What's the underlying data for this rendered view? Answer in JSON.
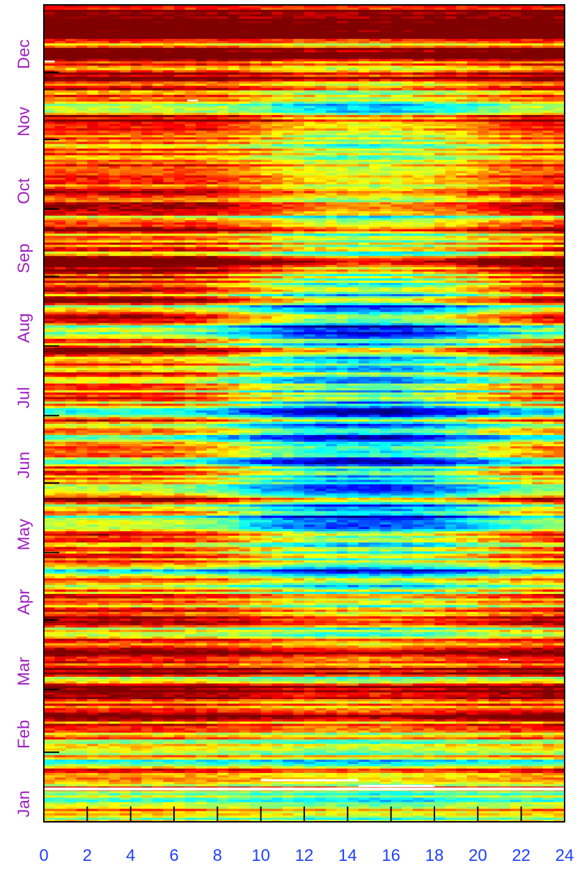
{
  "chart_data": {
    "type": "heatmap",
    "title": "",
    "xlabel": "",
    "ylabel": "",
    "x_range": [
      0,
      24
    ],
    "x_ticks": [
      "0",
      "2",
      "4",
      "6",
      "8",
      "10",
      "12",
      "14",
      "16",
      "18",
      "20",
      "22",
      "24"
    ],
    "y_months": [
      "Jan",
      "Feb",
      "Mar",
      "Apr",
      "May",
      "Jun",
      "Jul",
      "Aug",
      "Sep",
      "Oct",
      "Nov",
      "Dec"
    ],
    "y_range_days": [
      1,
      365
    ],
    "colormap": "jet",
    "colors": {
      "x_tick_labels": "#1f3fff",
      "y_tick_labels": "#a020c0",
      "frame": "#000000",
      "missing": "#ffffff"
    },
    "grid": false,
    "legend": "none",
    "value_scale": "0 (low, blue) to 1 (high, dark red)",
    "monthly_hourly_profile": {
      "hours": [
        0,
        2,
        4,
        6,
        8,
        10,
        12,
        14,
        16,
        18,
        20,
        22,
        24
      ],
      "Jan": [
        0.62,
        0.62,
        0.63,
        0.62,
        0.6,
        0.58,
        0.55,
        0.52,
        0.52,
        0.55,
        0.58,
        0.6,
        0.62
      ],
      "Feb": [
        0.8,
        0.8,
        0.8,
        0.8,
        0.78,
        0.74,
        0.7,
        0.7,
        0.72,
        0.75,
        0.78,
        0.8,
        0.8
      ],
      "Mar": [
        0.86,
        0.86,
        0.86,
        0.86,
        0.84,
        0.8,
        0.76,
        0.74,
        0.74,
        0.78,
        0.82,
        0.85,
        0.86
      ],
      "Apr": [
        0.68,
        0.68,
        0.68,
        0.66,
        0.62,
        0.55,
        0.48,
        0.44,
        0.44,
        0.48,
        0.55,
        0.62,
        0.66
      ],
      "May": [
        0.7,
        0.7,
        0.7,
        0.68,
        0.6,
        0.45,
        0.35,
        0.3,
        0.3,
        0.36,
        0.48,
        0.6,
        0.66
      ],
      "Jun": [
        0.7,
        0.7,
        0.7,
        0.68,
        0.58,
        0.44,
        0.34,
        0.3,
        0.3,
        0.36,
        0.48,
        0.6,
        0.66
      ],
      "Jul": [
        0.78,
        0.78,
        0.78,
        0.76,
        0.68,
        0.56,
        0.46,
        0.42,
        0.42,
        0.48,
        0.58,
        0.68,
        0.74
      ],
      "Aug": [
        0.74,
        0.74,
        0.74,
        0.72,
        0.62,
        0.46,
        0.34,
        0.28,
        0.28,
        0.36,
        0.5,
        0.62,
        0.7
      ],
      "Sep": [
        0.84,
        0.84,
        0.84,
        0.84,
        0.82,
        0.74,
        0.64,
        0.6,
        0.6,
        0.64,
        0.72,
        0.8,
        0.84
      ],
      "Oct": [
        0.9,
        0.9,
        0.9,
        0.9,
        0.88,
        0.8,
        0.72,
        0.68,
        0.68,
        0.72,
        0.8,
        0.88,
        0.9
      ],
      "Nov": [
        0.84,
        0.84,
        0.84,
        0.84,
        0.82,
        0.74,
        0.64,
        0.6,
        0.6,
        0.66,
        0.74,
        0.82,
        0.84
      ],
      "Dec": [
        0.92,
        0.92,
        0.92,
        0.92,
        0.92,
        0.9,
        0.88,
        0.88,
        0.88,
        0.9,
        0.91,
        0.92,
        0.92
      ]
    }
  }
}
